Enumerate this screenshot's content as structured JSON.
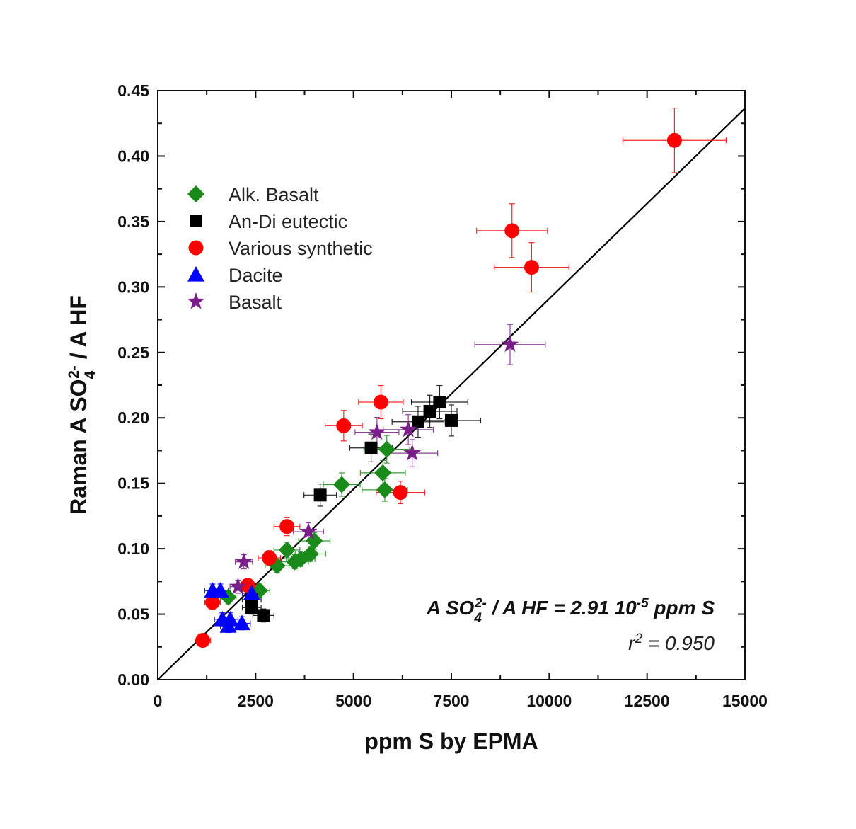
{
  "chart_data": {
    "type": "scatter",
    "xlabel": "ppm S by EPMA",
    "ylabel": {
      "pre": "Raman A SO",
      "sub": "4",
      "sup": "2-",
      "post": " / A HF"
    },
    "xlim": [
      0,
      15000
    ],
    "ylim": [
      0,
      0.45
    ],
    "x_ticks": [
      "0",
      "2500",
      "5000",
      "7500",
      "10000",
      "12500",
      "15000"
    ],
    "y_ticks": [
      "0.00",
      "0.05",
      "0.10",
      "0.15",
      "0.20",
      "0.25",
      "0.30",
      "0.35",
      "0.40",
      "0.45"
    ],
    "legend_position": "upper-left",
    "annotation": {
      "equation": {
        "pre": "A SO",
        "sub": "4",
        "sup": "2-",
        "mid": " / A HF = 2.91 10",
        "sup2": "-5",
        "post": " ppm S"
      },
      "r2": {
        "pre": "r",
        "sup": "2",
        "post": " = 0.950"
      }
    },
    "fit_line": {
      "slope": 2.91e-05,
      "intercept": 0,
      "x_range": [
        0,
        15000
      ],
      "color": "#000000"
    },
    "series": [
      {
        "name": "Alk. Basalt",
        "marker": "diamond",
        "color": "#1a8a1a",
        "points": [
          {
            "x": 1800,
            "y": 0.063
          },
          {
            "x": 2600,
            "y": 0.068
          },
          {
            "x": 3050,
            "y": 0.087
          },
          {
            "x": 3300,
            "y": 0.099
          },
          {
            "x": 3500,
            "y": 0.09
          },
          {
            "x": 3650,
            "y": 0.092
          },
          {
            "x": 3900,
            "y": 0.096
          },
          {
            "x": 4000,
            "y": 0.106
          },
          {
            "x": 4700,
            "y": 0.149
          },
          {
            "x": 5800,
            "y": 0.145
          },
          {
            "x": 5750,
            "y": 0.158
          },
          {
            "x": 5850,
            "y": 0.176
          }
        ]
      },
      {
        "name": "An-Di eutectic",
        "marker": "square",
        "color": "#000000",
        "points": [
          {
            "x": 2400,
            "y": 0.055
          },
          {
            "x": 2400,
            "y": 0.061
          },
          {
            "x": 2700,
            "y": 0.049
          },
          {
            "x": 4150,
            "y": 0.141
          },
          {
            "x": 5450,
            "y": 0.177
          },
          {
            "x": 6650,
            "y": 0.197
          },
          {
            "x": 6950,
            "y": 0.205
          },
          {
            "x": 7200,
            "y": 0.212
          },
          {
            "x": 7500,
            "y": 0.198
          }
        ]
      },
      {
        "name": "Various synthetic",
        "marker": "circle",
        "color": "#ff0000",
        "points": [
          {
            "x": 1150,
            "y": 0.03
          },
          {
            "x": 1400,
            "y": 0.059
          },
          {
            "x": 2300,
            "y": 0.072
          },
          {
            "x": 2850,
            "y": 0.093
          },
          {
            "x": 3300,
            "y": 0.117
          },
          {
            "x": 4750,
            "y": 0.194
          },
          {
            "x": 5700,
            "y": 0.212
          },
          {
            "x": 6200,
            "y": 0.143
          },
          {
            "x": 9050,
            "y": 0.343
          },
          {
            "x": 9550,
            "y": 0.315
          },
          {
            "x": 13200,
            "y": 0.412
          }
        ]
      },
      {
        "name": "Dacite",
        "marker": "triangle",
        "color": "#0000ff",
        "points": [
          {
            "x": 1400,
            "y": 0.068
          },
          {
            "x": 1600,
            "y": 0.068
          },
          {
            "x": 1650,
            "y": 0.046
          },
          {
            "x": 1800,
            "y": 0.041
          },
          {
            "x": 1850,
            "y": 0.046
          },
          {
            "x": 2150,
            "y": 0.043
          },
          {
            "x": 2400,
            "y": 0.066
          }
        ]
      },
      {
        "name": "Basalt",
        "marker": "star",
        "color": "#7a1f8a",
        "points": [
          {
            "x": 2050,
            "y": 0.071
          },
          {
            "x": 2200,
            "y": 0.09
          },
          {
            "x": 3850,
            "y": 0.113
          },
          {
            "x": 5600,
            "y": 0.189
          },
          {
            "x": 6400,
            "y": 0.191
          },
          {
            "x": 6500,
            "y": 0.173
          },
          {
            "x": 9000,
            "y": 0.256
          }
        ]
      }
    ]
  }
}
